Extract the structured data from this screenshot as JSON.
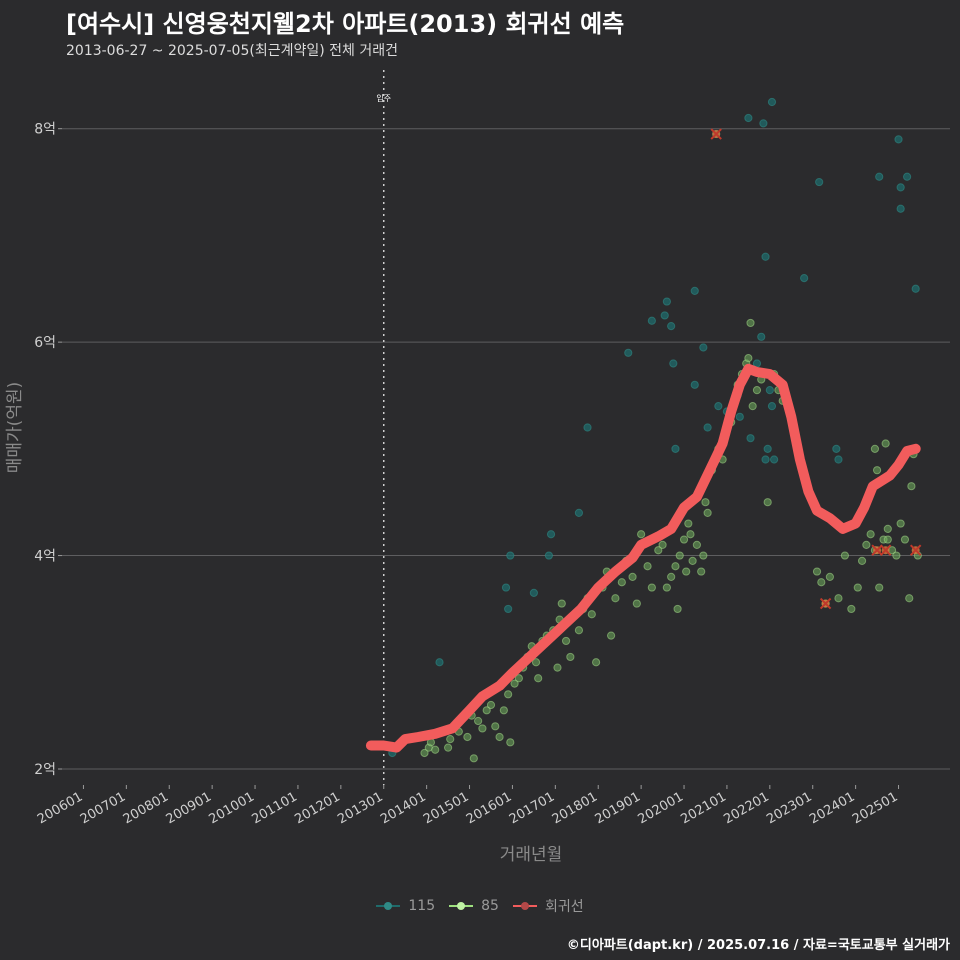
{
  "chart_data": {
    "type": "scatter",
    "title": "[여수시] 신영웅천지웰2차 아파트(2013) 회귀선 예측",
    "subtitle": "2013-06-27 ~ 2025-07-05(최근계약일) 전체 거래건",
    "xlabel": "거래년월",
    "ylabel": "매매가(억원)",
    "xlim": [
      2005.5,
      2026.2
    ],
    "ylim": [
      1.85,
      8.55
    ],
    "x_ticks": [
      {
        "value": 2006.0,
        "label": "200601"
      },
      {
        "value": 2007.0,
        "label": "200701"
      },
      {
        "value": 2008.0,
        "label": "200801"
      },
      {
        "value": 2009.0,
        "label": "200901"
      },
      {
        "value": 2010.0,
        "label": "201001"
      },
      {
        "value": 2011.0,
        "label": "201101"
      },
      {
        "value": 2012.0,
        "label": "201201"
      },
      {
        "value": 2013.0,
        "label": "201301"
      },
      {
        "value": 2014.0,
        "label": "201401"
      },
      {
        "value": 2015.0,
        "label": "201501"
      },
      {
        "value": 2016.0,
        "label": "201601"
      },
      {
        "value": 2017.0,
        "label": "201701"
      },
      {
        "value": 2018.0,
        "label": "201801"
      },
      {
        "value": 2019.0,
        "label": "201901"
      },
      {
        "value": 2020.0,
        "label": "202001"
      },
      {
        "value": 2021.0,
        "label": "202101"
      },
      {
        "value": 2022.0,
        "label": "202201"
      },
      {
        "value": 2023.0,
        "label": "202301"
      },
      {
        "value": 2024.0,
        "label": "202401"
      },
      {
        "value": 2025.0,
        "label": "202501"
      }
    ],
    "y_ticks": [
      {
        "value": 2,
        "label": "2억"
      },
      {
        "value": 4,
        "label": "4억"
      },
      {
        "value": 6,
        "label": "6억"
      },
      {
        "value": 8,
        "label": "8억"
      }
    ],
    "annotation": {
      "x": 2013.0,
      "label": "입주"
    },
    "grid": true,
    "legend_position": "bottom",
    "colors": {
      "s115": "#1f6b6b",
      "s85": "#6fae5d",
      "reg": "#f25c5c",
      "cross": "#c0392b"
    },
    "series": [
      {
        "name": "115",
        "points": [
          [
            2015.85,
            3.7
          ],
          [
            2015.95,
            4.0
          ],
          [
            2015.9,
            3.5
          ],
          [
            2016.5,
            3.65
          ],
          [
            2016.9,
            4.2
          ],
          [
            2016.85,
            4.0
          ],
          [
            2017.55,
            4.4
          ],
          [
            2017.75,
            5.2
          ],
          [
            2018.7,
            5.9
          ],
          [
            2019.25,
            6.2
          ],
          [
            2019.55,
            6.25
          ],
          [
            2019.6,
            6.38
          ],
          [
            2019.7,
            6.15
          ],
          [
            2019.75,
            5.8
          ],
          [
            2019.8,
            5.0
          ],
          [
            2020.25,
            5.6
          ],
          [
            2020.45,
            5.95
          ],
          [
            2020.55,
            5.2
          ],
          [
            2020.8,
            5.4
          ],
          [
            2020.25,
            6.48
          ],
          [
            2020.75,
            7.95
          ],
          [
            2021.0,
            5.35
          ],
          [
            2021.25,
            5.5
          ],
          [
            2021.3,
            5.3
          ],
          [
            2021.55,
            5.1
          ],
          [
            2021.7,
            5.8
          ],
          [
            2021.8,
            6.05
          ],
          [
            2021.9,
            6.8
          ],
          [
            2021.9,
            4.9
          ],
          [
            2021.95,
            5.0
          ],
          [
            2022.05,
            5.4
          ],
          [
            2021.85,
            8.05
          ],
          [
            2021.5,
            8.1
          ],
          [
            2022.05,
            8.25
          ],
          [
            2022.0,
            5.55
          ],
          [
            2022.1,
            4.9
          ],
          [
            2022.8,
            6.6
          ],
          [
            2023.15,
            7.5
          ],
          [
            2023.55,
            5.0
          ],
          [
            2023.6,
            4.9
          ],
          [
            2024.55,
            7.55
          ],
          [
            2025.0,
            7.9
          ],
          [
            2025.05,
            7.45
          ],
          [
            2025.05,
            7.25
          ],
          [
            2025.2,
            7.55
          ],
          [
            2025.4,
            6.5
          ],
          [
            2013.2,
            2.15
          ],
          [
            2014.3,
            3.0
          ]
        ]
      },
      {
        "name": "85",
        "points": [
          [
            2013.95,
            2.15
          ],
          [
            2014.05,
            2.2
          ],
          [
            2014.1,
            2.25
          ],
          [
            2014.2,
            2.18
          ],
          [
            2014.5,
            2.2
          ],
          [
            2014.55,
            2.28
          ],
          [
            2014.75,
            2.35
          ],
          [
            2014.95,
            2.3
          ],
          [
            2015.05,
            2.5
          ],
          [
            2015.1,
            2.1
          ],
          [
            2015.2,
            2.45
          ],
          [
            2015.3,
            2.38
          ],
          [
            2015.4,
            2.55
          ],
          [
            2015.5,
            2.6
          ],
          [
            2015.6,
            2.4
          ],
          [
            2015.7,
            2.3
          ],
          [
            2015.8,
            2.55
          ],
          [
            2015.9,
            2.7
          ],
          [
            2015.95,
            2.25
          ],
          [
            2016.05,
            2.8
          ],
          [
            2016.15,
            2.85
          ],
          [
            2016.25,
            2.95
          ],
          [
            2016.35,
            3.05
          ],
          [
            2016.45,
            3.15
          ],
          [
            2016.55,
            3.0
          ],
          [
            2016.6,
            2.85
          ],
          [
            2016.7,
            3.2
          ],
          [
            2016.8,
            3.25
          ],
          [
            2016.95,
            3.3
          ],
          [
            2017.05,
            2.95
          ],
          [
            2017.1,
            3.4
          ],
          [
            2017.15,
            3.55
          ],
          [
            2017.25,
            3.2
          ],
          [
            2017.35,
            3.05
          ],
          [
            2017.45,
            3.45
          ],
          [
            2017.55,
            3.3
          ],
          [
            2017.65,
            3.5
          ],
          [
            2017.75,
            3.6
          ],
          [
            2017.85,
            3.45
          ],
          [
            2017.95,
            3.0
          ],
          [
            2018.1,
            3.7
          ],
          [
            2018.2,
            3.85
          ],
          [
            2018.3,
            3.25
          ],
          [
            2018.4,
            3.6
          ],
          [
            2018.55,
            3.75
          ],
          [
            2018.65,
            3.95
          ],
          [
            2018.8,
            3.8
          ],
          [
            2018.9,
            3.55
          ],
          [
            2019.0,
            4.2
          ],
          [
            2019.15,
            3.9
          ],
          [
            2019.25,
            3.7
          ],
          [
            2019.4,
            4.05
          ],
          [
            2019.5,
            4.1
          ],
          [
            2019.6,
            3.7
          ],
          [
            2019.7,
            3.8
          ],
          [
            2019.8,
            3.9
          ],
          [
            2019.85,
            3.5
          ],
          [
            2019.9,
            4.0
          ],
          [
            2020.0,
            4.15
          ],
          [
            2020.05,
            3.85
          ],
          [
            2020.1,
            4.3
          ],
          [
            2020.15,
            4.2
          ],
          [
            2020.2,
            3.95
          ],
          [
            2020.3,
            4.1
          ],
          [
            2020.4,
            3.85
          ],
          [
            2020.45,
            4.0
          ],
          [
            2020.5,
            4.5
          ],
          [
            2020.55,
            4.4
          ],
          [
            2020.65,
            4.8
          ],
          [
            2020.8,
            5.0
          ],
          [
            2020.9,
            4.9
          ],
          [
            2021.1,
            5.25
          ],
          [
            2021.25,
            5.6
          ],
          [
            2021.35,
            5.7
          ],
          [
            2021.45,
            5.8
          ],
          [
            2021.5,
            5.85
          ],
          [
            2021.55,
            6.18
          ],
          [
            2021.6,
            5.4
          ],
          [
            2021.7,
            5.55
          ],
          [
            2021.8,
            5.65
          ],
          [
            2021.95,
            4.5
          ],
          [
            2022.1,
            5.7
          ],
          [
            2022.2,
            5.55
          ],
          [
            2022.3,
            5.45
          ],
          [
            2022.5,
            5.3
          ],
          [
            2023.1,
            3.85
          ],
          [
            2023.2,
            3.75
          ],
          [
            2023.3,
            3.55
          ],
          [
            2023.4,
            3.8
          ],
          [
            2023.6,
            3.6
          ],
          [
            2023.75,
            4.0
          ],
          [
            2023.9,
            3.5
          ],
          [
            2024.05,
            3.7
          ],
          [
            2024.15,
            3.95
          ],
          [
            2024.25,
            4.1
          ],
          [
            2024.35,
            4.2
          ],
          [
            2024.45,
            4.05
          ],
          [
            2024.55,
            3.7
          ],
          [
            2024.65,
            4.15
          ],
          [
            2024.75,
            4.25
          ],
          [
            2024.85,
            4.05
          ],
          [
            2024.95,
            4.0
          ],
          [
            2025.05,
            4.3
          ],
          [
            2025.15,
            4.15
          ],
          [
            2025.25,
            3.6
          ],
          [
            2025.3,
            4.65
          ],
          [
            2025.35,
            4.95
          ],
          [
            2025.45,
            4.0
          ],
          [
            2024.45,
            5.0
          ],
          [
            2024.5,
            4.8
          ],
          [
            2024.7,
            5.05
          ],
          [
            2024.75,
            4.15
          ]
        ]
      },
      {
        "name": "회귀선",
        "points": [
          [
            2012.7,
            2.22
          ],
          [
            2013.0,
            2.22
          ],
          [
            2013.3,
            2.2
          ],
          [
            2013.5,
            2.28
          ],
          [
            2013.8,
            2.3
          ],
          [
            2014.2,
            2.33
          ],
          [
            2014.6,
            2.38
          ],
          [
            2015.0,
            2.55
          ],
          [
            2015.3,
            2.68
          ],
          [
            2015.7,
            2.78
          ],
          [
            2016.0,
            2.9
          ],
          [
            2016.4,
            3.05
          ],
          [
            2016.8,
            3.2
          ],
          [
            2017.2,
            3.35
          ],
          [
            2017.6,
            3.5
          ],
          [
            2018.0,
            3.7
          ],
          [
            2018.4,
            3.85
          ],
          [
            2018.8,
            3.98
          ],
          [
            2019.0,
            4.1
          ],
          [
            2019.4,
            4.18
          ],
          [
            2019.7,
            4.25
          ],
          [
            2020.0,
            4.45
          ],
          [
            2020.3,
            4.55
          ],
          [
            2020.6,
            4.8
          ],
          [
            2020.9,
            5.05
          ],
          [
            2021.1,
            5.35
          ],
          [
            2021.3,
            5.6
          ],
          [
            2021.5,
            5.75
          ],
          [
            2021.7,
            5.72
          ],
          [
            2022.0,
            5.7
          ],
          [
            2022.3,
            5.6
          ],
          [
            2022.5,
            5.3
          ],
          [
            2022.7,
            4.9
          ],
          [
            2022.9,
            4.6
          ],
          [
            2023.1,
            4.42
          ],
          [
            2023.4,
            4.35
          ],
          [
            2023.7,
            4.25
          ],
          [
            2024.0,
            4.3
          ],
          [
            2024.2,
            4.45
          ],
          [
            2024.4,
            4.65
          ],
          [
            2024.6,
            4.7
          ],
          [
            2024.8,
            4.75
          ],
          [
            2025.0,
            4.85
          ],
          [
            2025.2,
            4.98
          ],
          [
            2025.4,
            5.0
          ]
        ]
      }
    ],
    "highlighted": [
      [
        2020.75,
        7.95
      ],
      [
        2023.3,
        3.55
      ],
      [
        2024.5,
        4.05
      ],
      [
        2024.7,
        4.05
      ],
      [
        2025.4,
        4.05
      ]
    ],
    "caption": "©디아파트(dapt.kr) / 2025.07.16 / 자료=국토교통부 실거래가"
  }
}
